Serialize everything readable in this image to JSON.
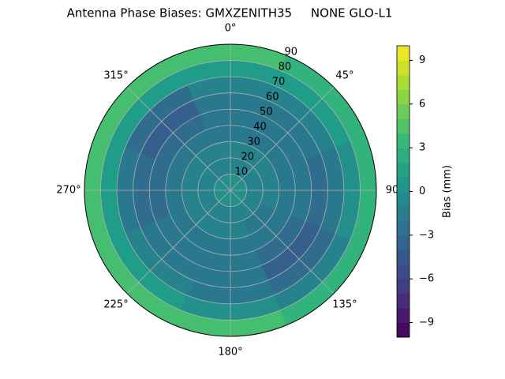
{
  "chart_data": {
    "type": "polar_contour",
    "title": "Antenna Phase Biases: GMXZENITH35     NONE GLO-L1",
    "azimuth": [
      0,
      45,
      90,
      135,
      180,
      225,
      270,
      315
    ],
    "zenith": [
      5,
      15,
      25,
      35,
      45,
      55,
      65,
      75,
      85
    ],
    "values": [
      [
        0,
        0,
        0,
        0,
        0,
        0,
        0,
        0
      ],
      [
        -1,
        -1,
        -1,
        -1,
        -1,
        -1,
        -1,
        -1
      ],
      [
        -1,
        -1,
        -1,
        -2,
        -1,
        -1,
        -1,
        -1
      ],
      [
        -2,
        -2,
        -2,
        -2,
        -2,
        -2,
        -2,
        -2
      ],
      [
        -2,
        -2,
        -2,
        -3,
        -2,
        -2,
        -3,
        -3
      ],
      [
        -2,
        -2,
        -3,
        -4,
        -2,
        -2,
        -3,
        -4
      ],
      [
        -1,
        -1,
        -2,
        -3,
        -2,
        -1,
        -2,
        -3
      ],
      [
        1,
        1,
        0,
        -1,
        0,
        1,
        1,
        1
      ],
      [
        4,
        3,
        3,
        3,
        4,
        4,
        4,
        4
      ]
    ],
    "rlim": [
      0,
      90
    ],
    "rticks": [
      10,
      20,
      30,
      40,
      50,
      60,
      70,
      80,
      90
    ],
    "thetaticks": [
      {
        "value": 0,
        "label": "0°"
      },
      {
        "value": 45,
        "label": "45°"
      },
      {
        "value": 90,
        "label": "90"
      },
      {
        "value": 135,
        "label": "135°"
      },
      {
        "value": 180,
        "label": "180°"
      },
      {
        "value": 225,
        "label": "225°"
      },
      {
        "value": 270,
        "label": "270°"
      },
      {
        "value": 315,
        "label": "315°"
      }
    ],
    "clim": [
      -10,
      10
    ],
    "cticks": [
      {
        "value": -9,
        "label": "−9"
      },
      {
        "value": -6,
        "label": "−6"
      },
      {
        "value": -3,
        "label": "−3"
      },
      0,
      3,
      6,
      9
    ],
    "colorbar_label": "Bias (mm)",
    "colormap": "viridis",
    "grid": true
  }
}
